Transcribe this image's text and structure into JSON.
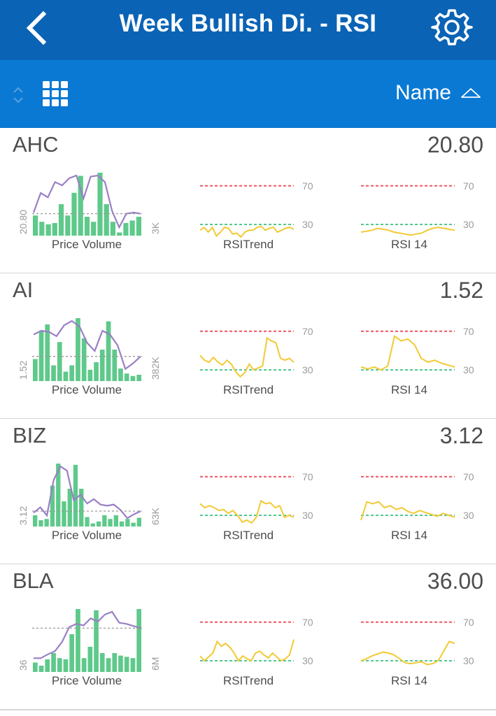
{
  "header": {
    "title": "Week Bullish Di. - RSI",
    "back_icon": "chevron-left-icon",
    "settings_icon": "gear-icon",
    "background": "#0a63b5"
  },
  "toolbar": {
    "sort_label": "Name",
    "sort_direction": "ascending",
    "background": "#0a79d3"
  },
  "captions": {
    "price_volume": "Price Volume",
    "rsi_trend": "RSITrend",
    "rsi14": "RSI 14"
  },
  "rsi_levels": {
    "upper": "70",
    "lower": "30"
  },
  "colors": {
    "volume_bar": "#5ec98a",
    "price_line": "#9a7fc6",
    "rsi_line": "#f3c934",
    "overbought_line": "#ee5466",
    "oversold_line": "#52c78e"
  },
  "stocks": [
    {
      "symbol": "AHC",
      "price": "20.80",
      "pv_price_label": "20.80",
      "pv_volume_label": "3K",
      "volumes": [
        0.32,
        0.22,
        0.18,
        0.2,
        0.5,
        0.32,
        0.68,
        0.95,
        0.3,
        0.22,
        1.0,
        0.5,
        0.22,
        0.05,
        0.2,
        0.24,
        0.3
      ],
      "prices": [
        0.32,
        0.68,
        0.6,
        0.88,
        0.82,
        0.95,
        1.0,
        0.58,
        0.98,
        1.0,
        0.88,
        0.35,
        0.05,
        0.3,
        0.32,
        0.3
      ],
      "rsi_trend": [
        24,
        27,
        22,
        27,
        18,
        22,
        27,
        26,
        20,
        21,
        17,
        22,
        24,
        24,
        27,
        28,
        24,
        26,
        27,
        22,
        24,
        26,
        27,
        25
      ],
      "rsi14": [
        22,
        23,
        24,
        26,
        25,
        24,
        22,
        21,
        20,
        19,
        20,
        21,
        24,
        26,
        27,
        26,
        25,
        24
      ]
    },
    {
      "symbol": "AI",
      "price": "1.52",
      "pv_price_label": "1.52",
      "pv_volume_label": "382K",
      "volumes": [
        0.35,
        0.8,
        0.9,
        0.25,
        0.62,
        0.15,
        0.25,
        1.0,
        0.68,
        0.18,
        0.3,
        0.5,
        0.95,
        0.5,
        0.2,
        0.12,
        0.08,
        0.1
      ],
      "prices": [
        0.75,
        0.82,
        0.8,
        0.72,
        0.92,
        1.0,
        0.9,
        0.6,
        0.45,
        0.82,
        0.75,
        0.55,
        0.12,
        0.22,
        0.35
      ],
      "rsi_trend": [
        45,
        40,
        38,
        43,
        38,
        35,
        40,
        36,
        28,
        23,
        27,
        36,
        30,
        32,
        34,
        63,
        60,
        58,
        42,
        40,
        42,
        38
      ],
      "rsi14": [
        33,
        31,
        33,
        30,
        34,
        65,
        60,
        62,
        56,
        42,
        38,
        40,
        37,
        35,
        33
      ]
    },
    {
      "symbol": "BIZ",
      "price": "3.12",
      "pv_price_label": "3.12",
      "pv_volume_label": "63K",
      "volumes": [
        0.18,
        0.1,
        0.12,
        0.65,
        1.0,
        0.4,
        0.6,
        0.98,
        0.6,
        0.15,
        0.05,
        0.08,
        0.18,
        0.12,
        0.18,
        0.08,
        0.12,
        0.06,
        0.14
      ],
      "prices": [
        0.15,
        0.25,
        0.1,
        0.75,
        1.0,
        0.92,
        0.38,
        0.48,
        0.32,
        0.4,
        0.3,
        0.28,
        0.3,
        0.2,
        0.05,
        0.12,
        0.18
      ],
      "rsi_trend": [
        42,
        38,
        40,
        38,
        35,
        36,
        32,
        35,
        30,
        23,
        25,
        22,
        28,
        45,
        42,
        43,
        38,
        40,
        28,
        30,
        28
      ],
      "rsi14": [
        25,
        44,
        42,
        44,
        38,
        40,
        36,
        38,
        34,
        32,
        35,
        33,
        31,
        29,
        32,
        30,
        28
      ]
    },
    {
      "symbol": "BLA",
      "price": "36.00",
      "pv_price_label": "36",
      "pv_volume_label": "6M",
      "volumes": [
        0.15,
        0.1,
        0.2,
        0.3,
        0.22,
        0.2,
        0.6,
        1.0,
        0.22,
        0.4,
        0.98,
        0.3,
        0.22,
        0.3,
        0.26,
        0.24,
        0.22,
        1.0
      ],
      "prices": [
        0.15,
        0.15,
        0.22,
        0.28,
        0.45,
        0.72,
        0.78,
        0.75,
        0.88,
        0.82,
        0.95,
        1.0,
        0.8,
        0.78,
        0.74,
        0.7
      ],
      "rsi_trend": [
        35,
        30,
        34,
        38,
        50,
        45,
        48,
        44,
        38,
        30,
        35,
        32,
        30,
        38,
        40,
        36,
        33,
        38,
        34,
        30,
        32,
        36,
        52
      ],
      "rsi14": [
        30,
        32,
        35,
        37,
        39,
        38,
        36,
        32,
        28,
        27,
        28,
        29,
        26,
        27,
        30,
        40,
        50,
        48
      ]
    }
  ]
}
